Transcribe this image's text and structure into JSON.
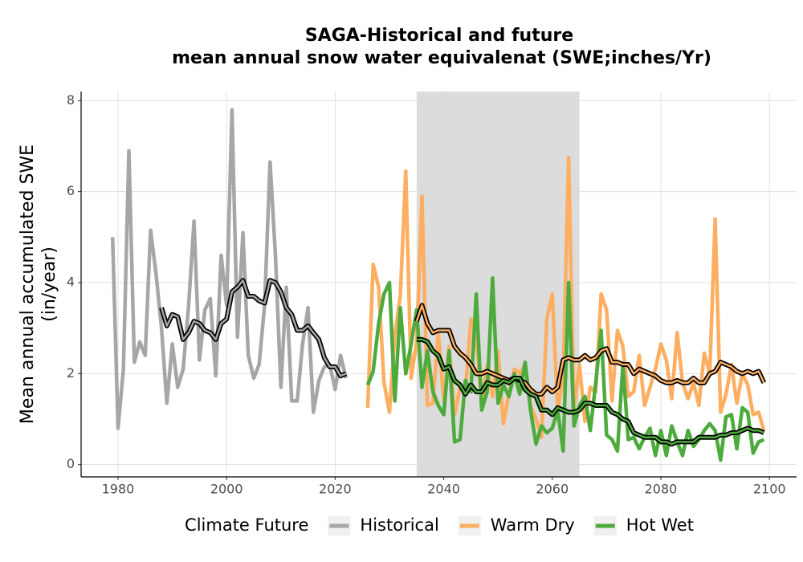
{
  "chart_data": {
    "type": "line",
    "title": [
      "SAGA-Historical and future",
      "mean annual snow water equivalenat (SWE;inches/Yr)"
    ],
    "y_label": [
      "Mean annual accumulated SWE",
      "(in/year)"
    ],
    "legend_title": "Climate Future",
    "legend_position": "bottom",
    "grid": true,
    "xlim": [
      1973.2,
      2105.0
    ],
    "xticks": [
      1980,
      2000,
      2020,
      2040,
      2060,
      2080,
      2100
    ],
    "ylim": [
      -0.27,
      8.2
    ],
    "yticks": [
      0,
      2,
      4,
      6,
      8
    ],
    "shaded_range": [
      2035,
      2065
    ],
    "shaded_color": "#dcdcdc",
    "series": [
      {
        "name": "Historical",
        "color": "#a6a6a6",
        "x": [
          1979,
          1980,
          1981,
          1982,
          1983,
          1984,
          1985,
          1986,
          1987,
          1988,
          1989,
          1990,
          1991,
          1992,
          1993,
          1994,
          1995,
          1996,
          1997,
          1998,
          1999,
          2000,
          2001,
          2002,
          2003,
          2004,
          2005,
          2006,
          2007,
          2008,
          2009,
          2010,
          2011,
          2012,
          2013,
          2014,
          2015,
          2016,
          2017,
          2018,
          2019,
          2020,
          2021,
          2022
        ],
        "values": [
          5.0,
          0.8,
          2.1,
          6.9,
          2.25,
          2.7,
          2.4,
          5.15,
          4.2,
          3.0,
          1.35,
          2.65,
          1.7,
          2.1,
          3.5,
          5.35,
          2.3,
          3.4,
          3.65,
          1.95,
          4.6,
          3.5,
          7.8,
          2.8,
          5.1,
          2.4,
          1.9,
          2.2,
          3.5,
          6.65,
          4.6,
          1.7,
          3.9,
          1.4,
          1.4,
          2.65,
          3.45,
          1.15,
          1.85,
          2.15,
          2.2,
          1.65,
          2.4,
          1.9
        ]
      },
      {
        "name": "Warm Dry",
        "color": "#fdae61",
        "x": [
          2026,
          2027,
          2028,
          2029,
          2030,
          2031,
          2032,
          2033,
          2034,
          2035,
          2036,
          2037,
          2038,
          2039,
          2040,
          2041,
          2042,
          2043,
          2044,
          2045,
          2046,
          2047,
          2048,
          2049,
          2050,
          2051,
          2052,
          2053,
          2054,
          2055,
          2056,
          2057,
          2058,
          2059,
          2060,
          2061,
          2062,
          2063,
          2064,
          2065,
          2066,
          2067,
          2068,
          2069,
          2070,
          2071,
          2072,
          2073,
          2074,
          2075,
          2076,
          2077,
          2078,
          2079,
          2080,
          2081,
          2082,
          2083,
          2084,
          2085,
          2086,
          2087,
          2088,
          2089,
          2090,
          2091,
          2092,
          2093,
          2094,
          2095,
          2096,
          2097,
          2098,
          2099
        ],
        "values": [
          1.25,
          4.4,
          3.9,
          1.8,
          1.15,
          2.85,
          3.7,
          6.45,
          1.9,
          2.7,
          5.9,
          1.3,
          1.35,
          2.9,
          1.4,
          2.6,
          1.1,
          1.7,
          1.6,
          3.2,
          2.85,
          1.3,
          2.2,
          1.5,
          2.5,
          0.9,
          1.55,
          2.1,
          2.0,
          2.2,
          1.3,
          1.0,
          0.6,
          3.2,
          3.75,
          1.2,
          1.9,
          6.75,
          1.2,
          2.2,
          0.95,
          1.7,
          1.6,
          3.75,
          3.4,
          1.4,
          2.95,
          2.6,
          1.5,
          1.6,
          2.4,
          1.3,
          1.7,
          2.1,
          2.65,
          2.3,
          1.45,
          2.9,
          1.8,
          1.45,
          1.8,
          1.3,
          2.45,
          2.0,
          5.4,
          1.15,
          1.55,
          2.2,
          1.35,
          2.0,
          1.75,
          1.1,
          1.15,
          0.75
        ]
      },
      {
        "name": "Hot Wet",
        "color": "#4daa3d",
        "x": [
          2026,
          2027,
          2028,
          2029,
          2030,
          2031,
          2032,
          2033,
          2034,
          2035,
          2036,
          2037,
          2038,
          2039,
          2040,
          2041,
          2042,
          2043,
          2044,
          2045,
          2046,
          2047,
          2048,
          2049,
          2050,
          2051,
          2052,
          2053,
          2054,
          2055,
          2056,
          2057,
          2058,
          2059,
          2060,
          2061,
          2062,
          2063,
          2064,
          2065,
          2066,
          2067,
          2068,
          2069,
          2070,
          2071,
          2072,
          2073,
          2074,
          2075,
          2076,
          2077,
          2078,
          2079,
          2080,
          2081,
          2082,
          2083,
          2084,
          2085,
          2086,
          2087,
          2088,
          2089,
          2090,
          2091,
          2092,
          2093,
          2094,
          2095,
          2096,
          2097,
          2098,
          2099
        ],
        "values": [
          1.75,
          2.05,
          3.1,
          3.75,
          4.0,
          1.4,
          3.45,
          2.0,
          2.65,
          3.4,
          1.7,
          2.5,
          1.6,
          1.3,
          1.1,
          2.5,
          0.5,
          0.55,
          1.85,
          1.6,
          3.75,
          1.2,
          1.6,
          4.1,
          1.35,
          1.75,
          1.5,
          2.0,
          1.55,
          2.25,
          1.2,
          0.45,
          0.85,
          0.7,
          0.8,
          1.2,
          0.3,
          4.0,
          0.85,
          1.3,
          1.5,
          0.75,
          1.8,
          2.95,
          0.65,
          0.55,
          0.3,
          2.2,
          0.55,
          0.6,
          0.35,
          0.6,
          0.8,
          0.2,
          0.75,
          0.2,
          0.85,
          0.5,
          0.2,
          0.75,
          0.4,
          0.55,
          0.75,
          0.9,
          0.75,
          0.1,
          1.05,
          1.1,
          0.35,
          1.25,
          1.15,
          0.25,
          0.5,
          0.55
        ]
      }
    ],
    "smoothed_color": "#000000",
    "smoothed": [
      {
        "x": [
          1988,
          1989,
          1990,
          1991,
          1992,
          1993,
          1994,
          1995,
          1996,
          1997,
          1998,
          1999,
          2000,
          2001,
          2002,
          2003,
          2004,
          2005,
          2006,
          2007,
          2008,
          2009,
          2010,
          2011,
          2012,
          2013,
          2014,
          2015,
          2016,
          2017,
          2018,
          2019,
          2020,
          2021,
          2022
        ],
        "values": [
          3.45,
          3.05,
          3.3,
          3.25,
          2.75,
          2.9,
          3.15,
          3.1,
          2.95,
          2.9,
          2.75,
          3.1,
          3.2,
          3.8,
          3.9,
          4.05,
          3.7,
          3.7,
          3.6,
          3.55,
          4.05,
          4.0,
          3.8,
          3.45,
          3.3,
          2.95,
          2.95,
          3.05,
          2.9,
          2.75,
          2.35,
          2.15,
          2.15,
          1.95,
          2.0
        ]
      },
      {
        "x": [
          2035,
          2036,
          2037,
          2038,
          2039,
          2040,
          2041,
          2042,
          2043,
          2044,
          2045,
          2046,
          2047,
          2048,
          2049,
          2050,
          2051,
          2052,
          2053,
          2054,
          2055,
          2056,
          2057,
          2058,
          2059,
          2060,
          2061,
          2062,
          2063,
          2064,
          2065,
          2066,
          2067,
          2068,
          2069,
          2070,
          2071,
          2072,
          2073,
          2074,
          2075,
          2076,
          2077,
          2078,
          2079,
          2080,
          2081,
          2082,
          2083,
          2084,
          2085,
          2086,
          2087,
          2088,
          2089,
          2090,
          2091,
          2092,
          2093,
          2094,
          2095,
          2096,
          2097,
          2098,
          2099
        ],
        "values": [
          3.15,
          3.5,
          3.1,
          2.9,
          2.95,
          2.95,
          2.95,
          2.6,
          2.45,
          2.35,
          2.2,
          2.0,
          2.0,
          2.05,
          2.0,
          1.95,
          1.9,
          1.85,
          1.9,
          1.85,
          1.8,
          1.65,
          1.55,
          1.55,
          1.7,
          1.6,
          1.7,
          2.3,
          2.35,
          2.3,
          2.3,
          2.4,
          2.3,
          2.35,
          2.5,
          2.55,
          2.25,
          2.25,
          2.2,
          2.2,
          2.0,
          2.1,
          2.05,
          2.0,
          1.95,
          1.85,
          1.8,
          1.8,
          1.85,
          1.8,
          1.8,
          1.9,
          1.8,
          1.8,
          2.0,
          2.05,
          2.25,
          2.2,
          2.15,
          2.05,
          2.0,
          2.05,
          2.0,
          2.05,
          1.8
        ]
      },
      {
        "x": [
          2035,
          2036,
          2037,
          2038,
          2039,
          2040,
          2041,
          2042,
          2043,
          2044,
          2045,
          2046,
          2047,
          2048,
          2049,
          2050,
          2051,
          2052,
          2053,
          2054,
          2055,
          2056,
          2057,
          2058,
          2059,
          2060,
          2061,
          2062,
          2063,
          2064,
          2065,
          2066,
          2067,
          2068,
          2069,
          2070,
          2071,
          2072,
          2073,
          2074,
          2075,
          2076,
          2077,
          2078,
          2079,
          2080,
          2081,
          2082,
          2083,
          2084,
          2085,
          2086,
          2087,
          2088,
          2089,
          2090,
          2091,
          2092,
          2093,
          2094,
          2095,
          2096,
          2097,
          2098,
          2099
        ],
        "values": [
          2.75,
          2.75,
          2.7,
          2.5,
          2.4,
          2.1,
          2.15,
          1.85,
          1.75,
          1.55,
          1.75,
          1.6,
          1.6,
          1.8,
          1.75,
          1.75,
          1.85,
          1.8,
          1.9,
          1.9,
          1.65,
          1.55,
          1.5,
          1.2,
          1.2,
          1.1,
          1.25,
          1.2,
          1.15,
          1.15,
          1.2,
          1.35,
          1.35,
          1.3,
          1.3,
          1.3,
          1.15,
          1.1,
          1.0,
          0.95,
          0.7,
          0.65,
          0.6,
          0.6,
          0.6,
          0.5,
          0.5,
          0.45,
          0.5,
          0.5,
          0.5,
          0.5,
          0.6,
          0.6,
          0.6,
          0.6,
          0.65,
          0.65,
          0.7,
          0.7,
          0.75,
          0.8,
          0.75,
          0.75,
          0.7
        ]
      }
    ]
  }
}
